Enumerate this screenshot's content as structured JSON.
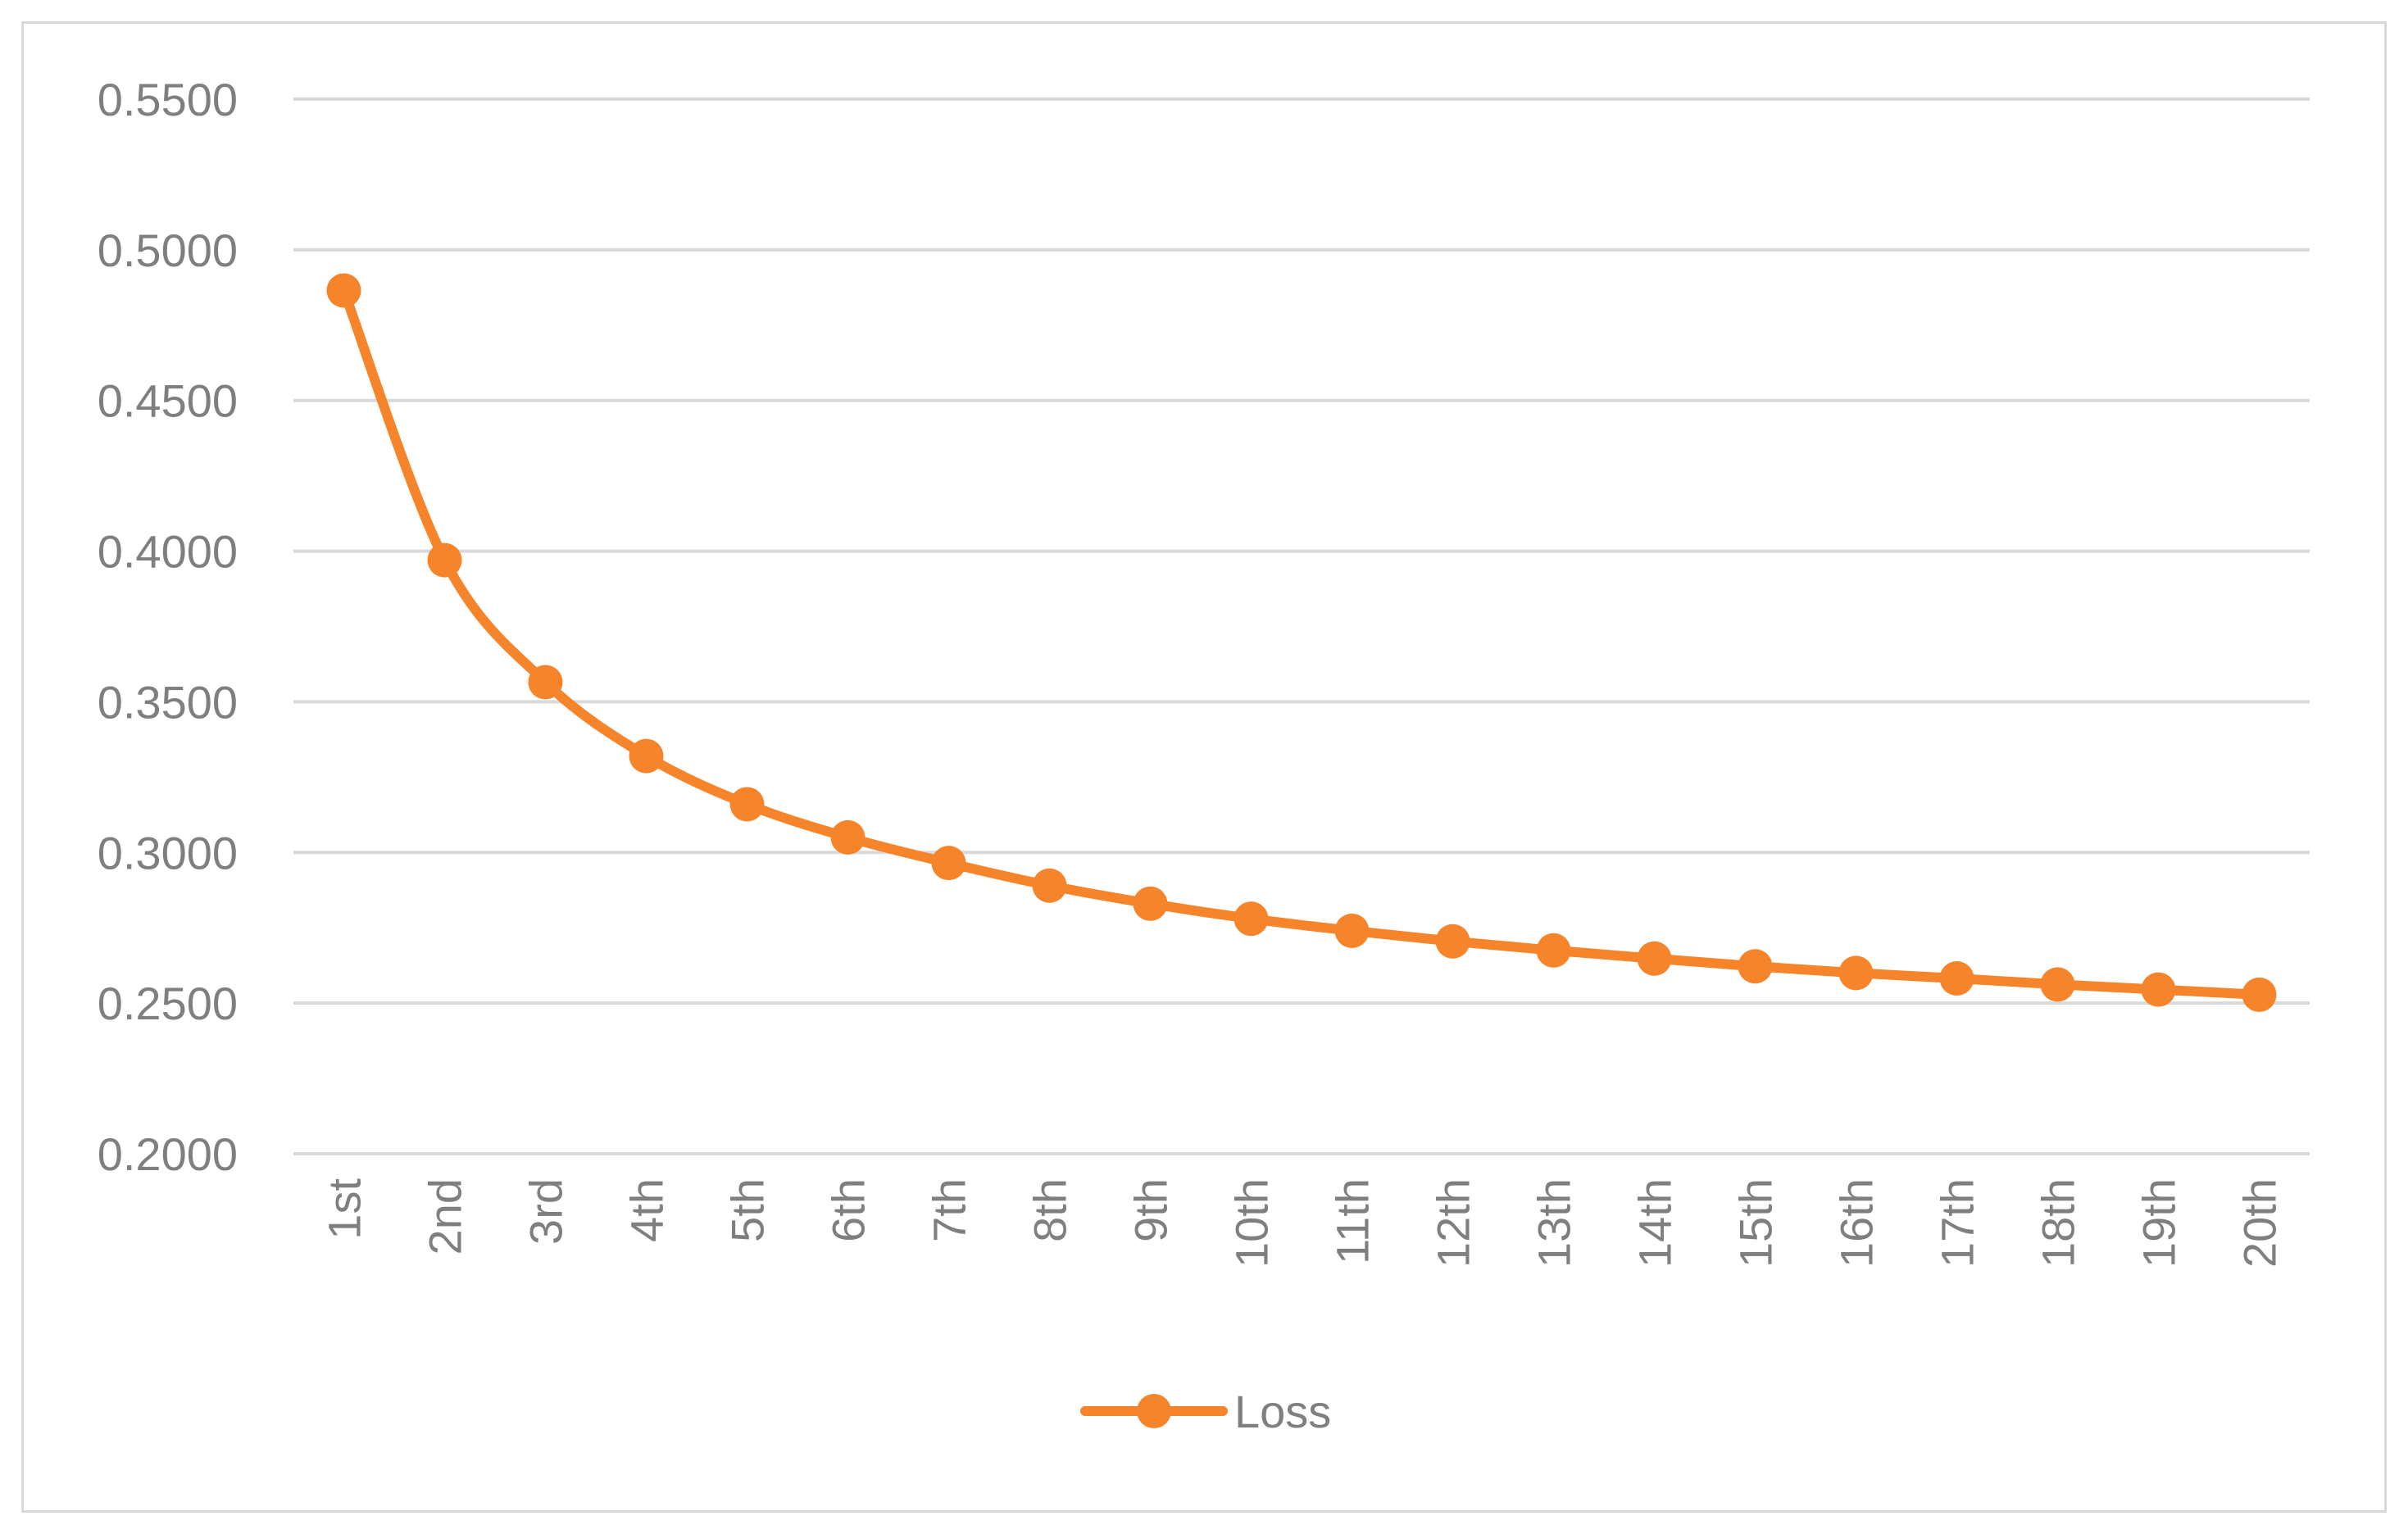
{
  "chart_data": {
    "type": "line",
    "title": "",
    "xlabel": "",
    "ylabel": "",
    "categories": [
      "1st",
      "2nd",
      "3rd",
      "4th",
      "5th",
      "6th",
      "7th",
      "8th",
      "9th",
      "10th",
      "11th",
      "12th",
      "13th",
      "14th",
      "15th",
      "16th",
      "17th",
      "18th",
      "19th",
      "20th"
    ],
    "series": [
      {
        "name": "Loss",
        "color": "#f5842a",
        "values": [
          0.4865,
          0.397,
          0.3565,
          0.332,
          0.316,
          0.305,
          0.2965,
          0.289,
          0.283,
          0.278,
          0.274,
          0.2705,
          0.2675,
          0.2648,
          0.2622,
          0.26,
          0.2582,
          0.2562,
          0.2545,
          0.2528
        ]
      }
    ],
    "ylim": [
      0.2,
      0.55
    ],
    "yticks": [
      "0.2000",
      "0.2500",
      "0.3000",
      "0.3500",
      "0.4000",
      "0.4500",
      "0.5000",
      "0.5500"
    ],
    "ytick_values": [
      0.2,
      0.25,
      0.3,
      0.35,
      0.4,
      0.45,
      0.5,
      0.55
    ],
    "grid": true,
    "smooth": true,
    "markers": true,
    "legend": "bottom-center"
  }
}
